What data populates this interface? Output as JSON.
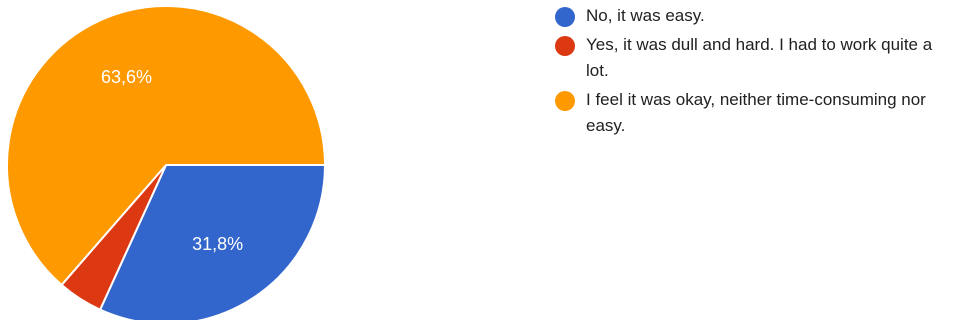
{
  "chart_data": {
    "type": "pie",
    "slices": [
      {
        "label": "No, it was easy.",
        "value": 31.8,
        "display": "31,8%",
        "color": "#3366cc"
      },
      {
        "label": "Yes, it was dull and hard. I had to work quite a lot.",
        "value": 4.6,
        "display": "",
        "color": "#dc3912"
      },
      {
        "label": "I feel it was okay, neither time-consuming nor easy.",
        "value": 63.6,
        "display": "63,6%",
        "color": "#ff9900"
      }
    ],
    "start_angle_deg": 90,
    "direction": "clockwise"
  },
  "legend": {
    "items": [
      {
        "label": "No, it was easy.",
        "color": "#3366cc"
      },
      {
        "label": "Yes, it was dull and hard. I had to work quite a lot.",
        "color": "#dc3912"
      },
      {
        "label": "I feel it was okay, neither time-consuming nor easy.",
        "color": "#ff9900"
      }
    ]
  }
}
